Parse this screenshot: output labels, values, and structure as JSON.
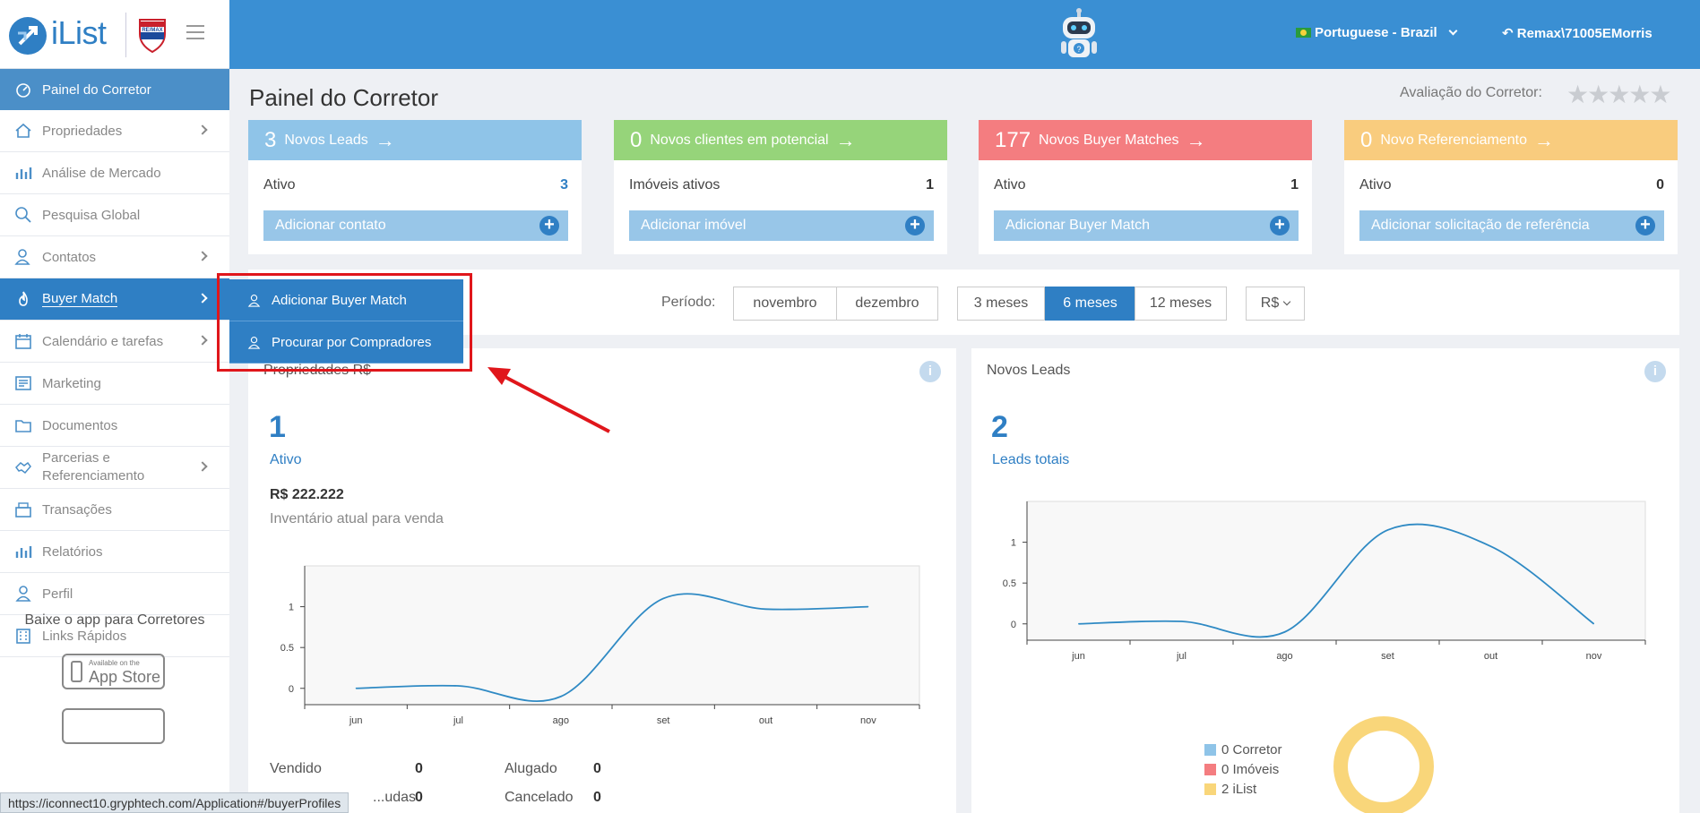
{
  "header": {
    "logo_text": "iList",
    "brand_badge": "RE/MAX",
    "language": "Portuguese - Brazil",
    "user": "Remax\\71005EMorris"
  },
  "sidebar": {
    "items": [
      {
        "label": "Painel do Corretor",
        "icon": "gauge-icon"
      },
      {
        "label": "Propriedades",
        "icon": "home-icon"
      },
      {
        "label": "Análise de Mercado",
        "icon": "bar-chart-icon"
      },
      {
        "label": "Pesquisa Global",
        "icon": "search-icon"
      },
      {
        "label": "Contatos",
        "icon": "contacts-icon"
      },
      {
        "label": "Buyer Match",
        "icon": "flame-icon"
      },
      {
        "label": "Calendário e tarefas",
        "icon": "calendar-icon"
      },
      {
        "label": "Marketing",
        "icon": "newspaper-icon"
      },
      {
        "label": "Documentos",
        "icon": "folder-icon"
      },
      {
        "label_line1": "Parcerias e",
        "label_line2": "Referenciamento",
        "icon": "handshake-icon"
      },
      {
        "label": "Transações",
        "icon": "register-icon"
      },
      {
        "label": "Relatórios",
        "icon": "bar-chart-icon"
      },
      {
        "label": "Perfil",
        "icon": "user-icon"
      },
      {
        "label": "Links Rápidos",
        "icon": "building-icon"
      }
    ],
    "app_title": "Baixe o app para Corretores",
    "appstore_small": "Available on the",
    "appstore_big": "App Store"
  },
  "page": {
    "title": "Painel do Corretor",
    "rating_label": "Avaliação do Corretor:",
    "stars": "★★★★★",
    "stars_filled": 0
  },
  "cards": [
    {
      "count": "3",
      "title": "Novos Leads",
      "color": "#8fc4e8",
      "row_label": "Ativo",
      "row_value": "3",
      "button": "Adicionar contato"
    },
    {
      "count": "0",
      "title": "Novos clientes em potencial",
      "color": "#96d47a",
      "row_label": "Imóveis ativos",
      "row_value": "1",
      "button": "Adicionar imóvel"
    },
    {
      "count": "177",
      "title": "Novos Buyer Matches",
      "color": "#f47d80",
      "row_label": "Ativo",
      "row_value": "1",
      "button": "Adicionar Buyer Match"
    },
    {
      "count": "0",
      "title": "Novo Referenciamento",
      "color": "#f9cc7e",
      "row_label": "Ativo",
      "row_value": "0",
      "button": "Adicionar solicitação de referência"
    }
  ],
  "period": {
    "label": "Período:",
    "months": [
      "novembro",
      "dezembro"
    ],
    "ranges": [
      "3 meses",
      "6 meses",
      "12 meses"
    ],
    "selected_range": "6 meses",
    "currency": "R$"
  },
  "popup": {
    "items": [
      "Adicionar Buyer Match",
      "Procurar por Compradores"
    ]
  },
  "panel_left": {
    "title": "Propriedades R$",
    "big_number": "1",
    "link": "Ativo",
    "price": "R$ 222.222",
    "inventory_text": "Inventário atual para venda",
    "stats": [
      {
        "label": "Vendido",
        "value": "0"
      },
      {
        "label": "Alugado",
        "value": "0"
      },
      {
        "label": "...udas",
        "value": "0"
      },
      {
        "label": "Cancelado",
        "value": "0"
      }
    ]
  },
  "panel_right": {
    "title": "Novos Leads",
    "big_number": "2",
    "link": "Leads totais",
    "legend": [
      {
        "label": "0 Corretor",
        "color": "#8fc4e8"
      },
      {
        "label": "0 Imóveis",
        "color": "#f47d80"
      },
      {
        "label": "2 iList",
        "color": "#f9d67a"
      }
    ]
  },
  "chart_data": [
    {
      "type": "line",
      "categories": [
        "jun",
        "jul",
        "ago",
        "set",
        "out",
        "nov"
      ],
      "values": [
        0,
        0.03,
        -0.1,
        1.1,
        0.97,
        1
      ],
      "yticks": [
        0,
        0.5,
        1
      ],
      "ylim": [
        -0.2,
        1.5
      ],
      "color": "#2f8ac4"
    },
    {
      "type": "line",
      "categories": [
        "jun",
        "jul",
        "ago",
        "set",
        "out",
        "nov"
      ],
      "values": [
        0,
        0.03,
        -0.1,
        1.15,
        0.95,
        0
      ],
      "yticks": [
        0,
        0.5,
        1
      ],
      "ylim": [
        -0.2,
        1.5
      ],
      "color": "#2f8ac4"
    }
  ],
  "status_bar": {
    "url": "https://iconnect10.gryphtech.com/Application#/buyerProfiles"
  }
}
